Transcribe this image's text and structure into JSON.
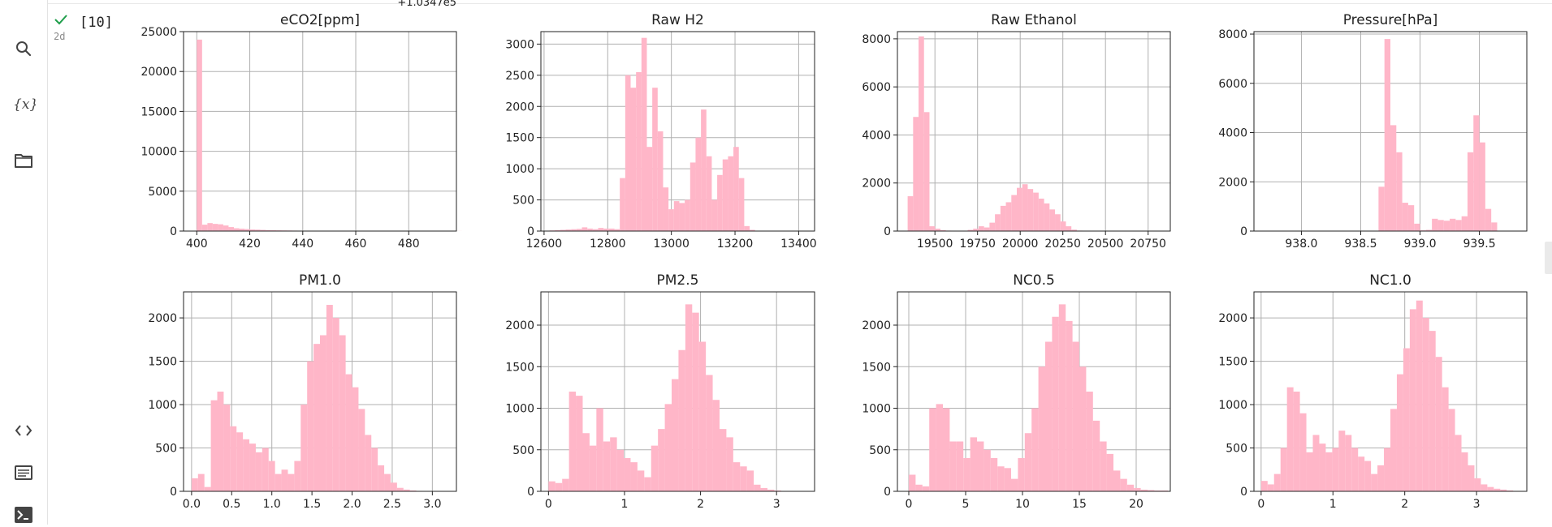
{
  "cell": {
    "exec_count": "[10]",
    "elapsed": "2d"
  },
  "icons": [
    "search-icon",
    "variables-icon",
    "folder-icon",
    "code-snippets-icon",
    "command-palette-icon",
    "terminal-icon"
  ],
  "colors": {
    "bar": "#ffb6c8",
    "grid": "#b0b0b0",
    "axis": "#222222",
    "success": "#1e9e4a"
  },
  "chart_data": [
    {
      "type": "histogram",
      "title": "eCO2[ppm]",
      "xlim": [
        395,
        498
      ],
      "ylim": [
        0,
        25000
      ],
      "xticks": [
        400,
        420,
        440,
        460,
        480
      ],
      "yticks": [
        0,
        5000,
        10000,
        15000,
        20000,
        25000
      ],
      "bin_start": 400,
      "bin_width": 2,
      "values": [
        24000,
        800,
        1000,
        900,
        850,
        700,
        500,
        350,
        300,
        250,
        200,
        180,
        150,
        120,
        100,
        90,
        80,
        70,
        60,
        50,
        45,
        40,
        40,
        35,
        30,
        30,
        25,
        25,
        20,
        20,
        20,
        20,
        18,
        18,
        15,
        15,
        15,
        15,
        12,
        12,
        12,
        12,
        10,
        10,
        10,
        10,
        10,
        10,
        8,
        8
      ]
    },
    {
      "type": "histogram",
      "title": "Raw H2",
      "xlim": [
        12590,
        13450
      ],
      "ylim": [
        0,
        3200
      ],
      "xticks": [
        12600,
        12800,
        13000,
        13200,
        13400
      ],
      "yticks": [
        0,
        500,
        1000,
        1500,
        2000,
        2500,
        3000
      ],
      "bin_start": 12600,
      "bin_width": 17,
      "values": [
        5,
        10,
        15,
        20,
        25,
        30,
        35,
        60,
        40,
        30,
        50,
        40,
        40,
        30,
        850,
        2500,
        2300,
        2550,
        3100,
        1350,
        2300,
        1600,
        700,
        350,
        480,
        450,
        500,
        1100,
        1500,
        1950,
        1200,
        500,
        900,
        1150,
        1200,
        1350,
        850,
        80,
        20,
        5
      ]
    },
    {
      "type": "histogram",
      "title": "Raw Ethanol",
      "xlim": [
        19280,
        20880
      ],
      "ylim": [
        0,
        8300
      ],
      "xticks": [
        19500,
        19750,
        20000,
        20250,
        20500,
        20750
      ],
      "yticks": [
        0,
        2000,
        4000,
        6000,
        8000
      ],
      "bin_start": 19340,
      "bin_width": 32,
      "values": [
        1450,
        4750,
        8100,
        4950,
        200,
        100,
        40,
        20,
        10,
        10,
        10,
        50,
        100,
        200,
        150,
        350,
        700,
        1050,
        1200,
        1500,
        1800,
        1950,
        1750,
        1600,
        1350,
        1150,
        900,
        700,
        400,
        200,
        60,
        20,
        10
      ]
    },
    {
      "type": "histogram",
      "title": "Pressure[hPa]",
      "xlim": [
        937.6,
        939.9
      ],
      "ylim": [
        0,
        8100
      ],
      "xticks": [
        938.0,
        938.5,
        939.0,
        939.5
      ],
      "xtick_labels": [
        "938.0",
        "938.5",
        "939.0",
        "939.5"
      ],
      "yticks": [
        0,
        2000,
        4000,
        6000,
        8000
      ],
      "offset_text": "+1.0347e5",
      "bin_start": 938.65,
      "bin_width": 0.05,
      "values": [
        1800,
        7800,
        4300,
        3200,
        1150,
        1050,
        300,
        30,
        50,
        500,
        450,
        420,
        500,
        450,
        600,
        3200,
        4700,
        3600,
        900,
        350
      ]
    },
    {
      "type": "histogram",
      "title": "PM1.0",
      "xlim": [
        -0.1,
        3.3
      ],
      "ylim": [
        0,
        2300
      ],
      "xticks": [
        0.0,
        0.5,
        1.0,
        1.5,
        2.0,
        2.5,
        3.0
      ],
      "xtick_labels": [
        "0.0",
        "0.5",
        "1.0",
        "1.5",
        "2.0",
        "2.5",
        "3.0"
      ],
      "yticks": [
        0,
        500,
        1000,
        1500,
        2000
      ],
      "bin_start": 0.0,
      "bin_width": 0.08,
      "values": [
        150,
        200,
        50,
        1050,
        1150,
        1000,
        750,
        680,
        600,
        550,
        450,
        500,
        350,
        200,
        250,
        200,
        350,
        1000,
        1500,
        1700,
        1800,
        2150,
        2000,
        1800,
        1350,
        1200,
        950,
        650,
        500,
        300,
        200,
        100,
        40,
        20,
        10,
        5
      ]
    },
    {
      "type": "histogram",
      "title": "PM2.5",
      "xlim": [
        -0.1,
        3.5
      ],
      "ylim": [
        0,
        2400
      ],
      "xticks": [
        0,
        1,
        2,
        3
      ],
      "yticks": [
        0,
        500,
        1000,
        1500,
        2000
      ],
      "bin_start": 0.0,
      "bin_width": 0.09,
      "values": [
        120,
        100,
        150,
        1200,
        1150,
        700,
        550,
        1000,
        600,
        650,
        500,
        400,
        350,
        250,
        170,
        550,
        750,
        1050,
        1350,
        1700,
        2250,
        2150,
        1800,
        1400,
        1100,
        750,
        650,
        350,
        300,
        250,
        80,
        40,
        20,
        10,
        5,
        5,
        3
      ]
    },
    {
      "type": "histogram",
      "title": "NC0.5",
      "xlim": [
        -1,
        23
      ],
      "ylim": [
        0,
        2400
      ],
      "xticks": [
        0,
        5,
        10,
        15,
        20
      ],
      "yticks": [
        0,
        500,
        1000,
        1500,
        2000
      ],
      "bin_start": 0.0,
      "bin_width": 0.6,
      "values": [
        200,
        80,
        60,
        1000,
        1050,
        1000,
        600,
        600,
        400,
        650,
        600,
        500,
        400,
        300,
        280,
        150,
        400,
        700,
        1000,
        1500,
        1800,
        2100,
        2250,
        2050,
        1800,
        1500,
        1200,
        850,
        600,
        450,
        250,
        150,
        80,
        40,
        20,
        15,
        10,
        10
      ]
    },
    {
      "type": "histogram",
      "title": "NC1.0",
      "xlim": [
        -0.1,
        3.7
      ],
      "ylim": [
        0,
        2300
      ],
      "xticks": [
        0,
        1,
        2,
        3
      ],
      "yticks": [
        0,
        500,
        1000,
        1500,
        2000
      ],
      "bin_start": 0.0,
      "bin_width": 0.09,
      "values": [
        120,
        80,
        200,
        500,
        1200,
        1150,
        900,
        450,
        650,
        550,
        450,
        500,
        700,
        650,
        500,
        400,
        350,
        200,
        300,
        500,
        950,
        1350,
        1650,
        2100,
        2200,
        2000,
        1850,
        1550,
        1200,
        950,
        650,
        450,
        300,
        150,
        80,
        50,
        30,
        20,
        10,
        5
      ]
    }
  ]
}
